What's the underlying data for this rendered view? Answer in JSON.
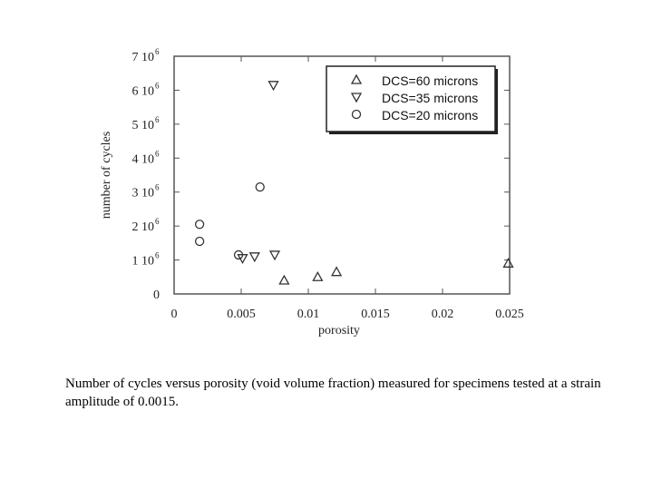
{
  "chart_data": {
    "type": "scatter",
    "xlabel": "porosity",
    "ylabel": "number of cycles",
    "xlim": [
      0,
      0.025
    ],
    "ylim": [
      0,
      7000000
    ],
    "x_ticks": [
      {
        "value": 0,
        "label": "0"
      },
      {
        "value": 0.005,
        "label": "0.005"
      },
      {
        "value": 0.01,
        "label": "0.01"
      },
      {
        "value": 0.015,
        "label": "0.015"
      },
      {
        "value": 0.02,
        "label": "0.02"
      },
      {
        "value": 0.025,
        "label": "0.025"
      }
    ],
    "y_ticks": [
      {
        "value": 0,
        "mantissa": "0",
        "exponent": ""
      },
      {
        "value": 1000000,
        "mantissa": "1 10",
        "exponent": "6"
      },
      {
        "value": 2000000,
        "mantissa": "2 10",
        "exponent": "6"
      },
      {
        "value": 3000000,
        "mantissa": "3 10",
        "exponent": "6"
      },
      {
        "value": 4000000,
        "mantissa": "4 10",
        "exponent": "6"
      },
      {
        "value": 5000000,
        "mantissa": "5 10",
        "exponent": "6"
      },
      {
        "value": 6000000,
        "mantissa": "6 10",
        "exponent": "6"
      },
      {
        "value": 7000000,
        "mantissa": "7 10",
        "exponent": "6"
      }
    ],
    "grid": false,
    "legend_position": "top-right",
    "series": [
      {
        "name": "DCS=60 microns",
        "marker": "triangle-up",
        "points": [
          [
            0.0082,
            400000
          ],
          [
            0.0107,
            500000
          ],
          [
            0.0121,
            650000
          ],
          [
            0.0249,
            900000
          ]
        ]
      },
      {
        "name": "DCS=35 microns",
        "marker": "triangle-down",
        "points": [
          [
            0.0051,
            1050000
          ],
          [
            0.006,
            1100000
          ],
          [
            0.0075,
            1150000
          ],
          [
            0.0074,
            6150000
          ]
        ]
      },
      {
        "name": "DCS=20 microns",
        "marker": "circle",
        "points": [
          [
            0.0019,
            2050000
          ],
          [
            0.0019,
            1550000
          ],
          [
            0.0048,
            1150000
          ],
          [
            0.0064,
            3150000
          ]
        ]
      }
    ]
  },
  "caption": "Number of cycles versus porosity (void volume fraction) measured for specimens tested at a strain amplitude of  0.0015."
}
